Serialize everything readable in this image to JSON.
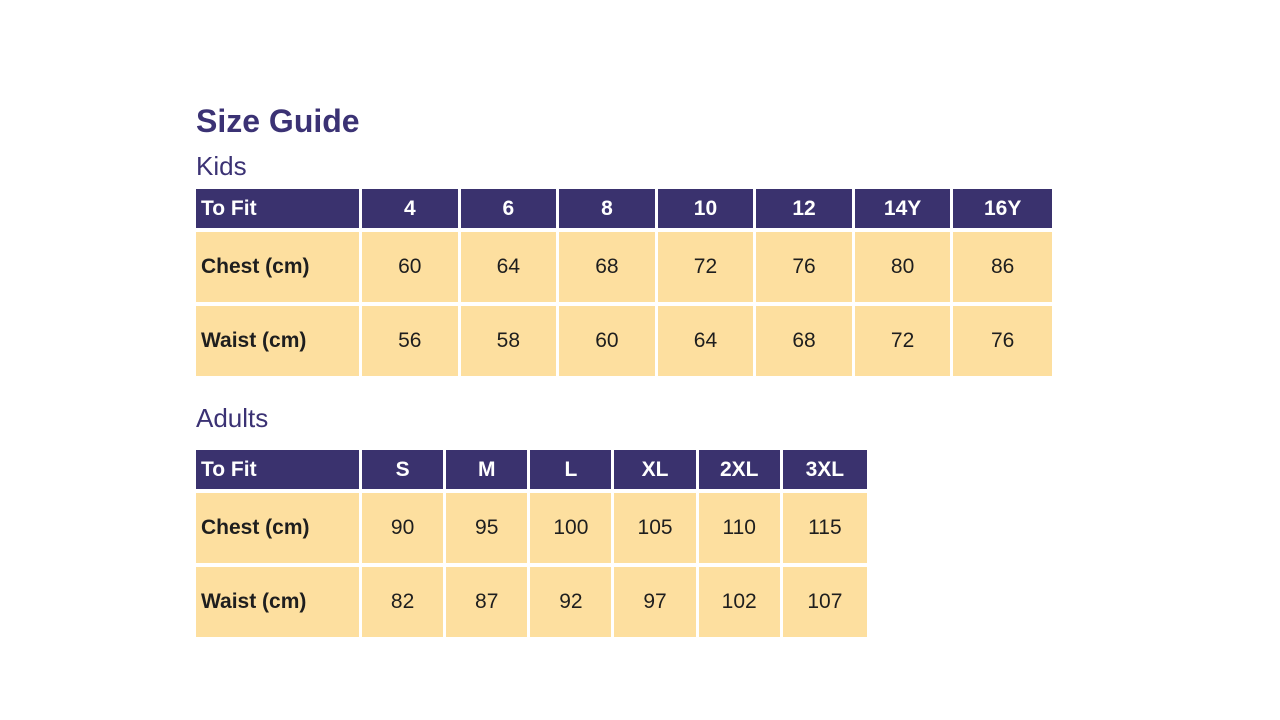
{
  "page": {
    "title": "Size Guide"
  },
  "colors": {
    "heading_text": "#3B3274",
    "table_header_bg": "#3A326E",
    "table_header_text": "#FFFFFF",
    "cell_bg": "#FDDF9F",
    "cell_text": "#1E1E1E",
    "gridline": "#FFFFFF",
    "background": "#FFFFFF"
  },
  "sections": [
    {
      "label": "Kids",
      "table": {
        "header": [
          "To Fit",
          "4",
          "6",
          "8",
          "10",
          "12",
          "14Y",
          "16Y"
        ],
        "rows": [
          {
            "label": "Chest (cm)",
            "values": [
              "60",
              "64",
              "68",
              "72",
              "76",
              "80",
              "86"
            ]
          },
          {
            "label": "Waist (cm)",
            "values": [
              "56",
              "58",
              "60",
              "64",
              "68",
              "72",
              "76"
            ]
          }
        ]
      }
    },
    {
      "label": "Adults",
      "table": {
        "header": [
          "To Fit",
          "S",
          "M",
          "L",
          "XL",
          "2XL",
          "3XL"
        ],
        "rows": [
          {
            "label": "Chest (cm)",
            "values": [
              "90",
              "95",
              "100",
              "105",
              "110",
              "115"
            ]
          },
          {
            "label": "Waist (cm)",
            "values": [
              "82",
              "87",
              "92",
              "97",
              "102",
              "107"
            ]
          }
        ]
      }
    }
  ],
  "chart_data": [
    {
      "type": "table",
      "title": "Kids",
      "columns": [
        "To Fit",
        "4",
        "6",
        "8",
        "10",
        "12",
        "14Y",
        "16Y"
      ],
      "rows": [
        [
          "Chest (cm)",
          60,
          64,
          68,
          72,
          76,
          80,
          86
        ],
        [
          "Waist (cm)",
          56,
          58,
          60,
          64,
          68,
          72,
          76
        ]
      ]
    },
    {
      "type": "table",
      "title": "Adults",
      "columns": [
        "To Fit",
        "S",
        "M",
        "L",
        "XL",
        "2XL",
        "3XL"
      ],
      "rows": [
        [
          "Chest (cm)",
          90,
          95,
          100,
          105,
          110,
          115
        ],
        [
          "Waist (cm)",
          82,
          87,
          92,
          97,
          102,
          107
        ]
      ]
    }
  ]
}
